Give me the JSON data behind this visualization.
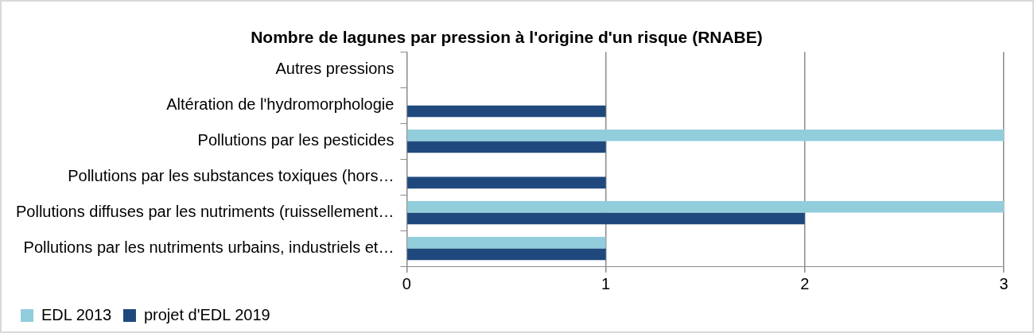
{
  "chart_data": {
    "type": "bar",
    "orientation": "horizontal",
    "title": "Nombre de lagunes par pression à l'origine d'un risque (RNABE)",
    "categories": [
      "Autres pressions",
      "Altération de l'hydromorphologie",
      "Pollutions par les pesticides",
      "Pollutions par les substances toxiques (hors…",
      "Pollutions diffuses par les nutriments (ruissellement…",
      "Pollutions par les nutriments urbains, industriels et…"
    ],
    "series": [
      {
        "name": "EDL 2013",
        "color": "#92cddc",
        "values": [
          null,
          null,
          3,
          null,
          3,
          1
        ]
      },
      {
        "name": "projet d'EDL 2019",
        "color": "#1f497d",
        "values": [
          null,
          1,
          1,
          1,
          2,
          1
        ]
      }
    ],
    "xlim": [
      0,
      3
    ],
    "xticks": [
      0,
      1,
      2,
      3
    ],
    "grid": "x",
    "legend": "bottom left"
  }
}
